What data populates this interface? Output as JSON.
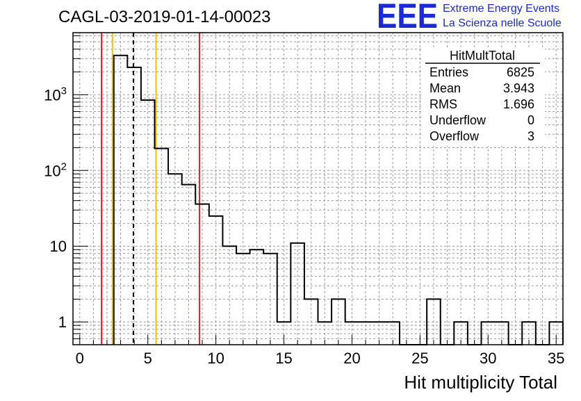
{
  "chart_data": {
    "type": "histogram",
    "title": "CAGL-03-2019-01-14-00023",
    "xlabel": "Hit multiplicity Total",
    "ylabel": "",
    "xlim": [
      -0.5,
      35.5
    ],
    "ylim": [
      0.5,
      6600
    ],
    "yscale": "log",
    "grid": true,
    "bin_width": 1,
    "bins": [
      {
        "x": 3,
        "y": 3300
      },
      {
        "x": 4,
        "y": 2300
      },
      {
        "x": 5,
        "y": 850
      },
      {
        "x": 6,
        "y": 195
      },
      {
        "x": 7,
        "y": 90
      },
      {
        "x": 8,
        "y": 65
      },
      {
        "x": 9,
        "y": 36
      },
      {
        "x": 10,
        "y": 25
      },
      {
        "x": 11,
        "y": 10
      },
      {
        "x": 12,
        "y": 8
      },
      {
        "x": 13,
        "y": 9
      },
      {
        "x": 14,
        "y": 8
      },
      {
        "x": 15,
        "y": 1
      },
      {
        "x": 16,
        "y": 11
      },
      {
        "x": 17,
        "y": 2
      },
      {
        "x": 18,
        "y": 1
      },
      {
        "x": 19,
        "y": 2
      },
      {
        "x": 20,
        "y": 1
      },
      {
        "x": 21,
        "y": 1
      },
      {
        "x": 22,
        "y": 1
      },
      {
        "x": 23,
        "y": 1
      },
      {
        "x": 24,
        "y": 0
      },
      {
        "x": 25,
        "y": 0
      },
      {
        "x": 26,
        "y": 2
      },
      {
        "x": 27,
        "y": 0
      },
      {
        "x": 28,
        "y": 1
      },
      {
        "x": 29,
        "y": 0
      },
      {
        "x": 30,
        "y": 1
      },
      {
        "x": 31,
        "y": 1
      },
      {
        "x": 32,
        "y": 0
      },
      {
        "x": 33,
        "y": 1
      },
      {
        "x": 34,
        "y": 0
      },
      {
        "x": 35,
        "y": 1
      }
    ],
    "x_ticks": [
      "0",
      "5",
      "10",
      "15",
      "20",
      "25",
      "30",
      "35"
    ],
    "y_ticks": [
      {
        "value": 1,
        "label": "1"
      },
      {
        "value": 10,
        "label": "10"
      },
      {
        "value": 100,
        "label": "10",
        "exponent": "2"
      },
      {
        "value": 1000,
        "label": "10",
        "exponent": "3"
      }
    ],
    "reference_lines": [
      {
        "x": 1.6,
        "color": "#e31a1c",
        "style": "solid"
      },
      {
        "x": 2.4,
        "color": "#f2c200",
        "style": "solid"
      },
      {
        "x": 3.94,
        "color": "#000000",
        "style": "dashed"
      },
      {
        "x": 5.6,
        "color": "#f2c200",
        "style": "solid"
      },
      {
        "x": 8.8,
        "color": "#e31a1c",
        "style": "solid"
      }
    ]
  },
  "stats_box": {
    "name": "HitMultTotal",
    "rows": [
      {
        "label": "Entries",
        "value": "6825"
      },
      {
        "label": "Mean",
        "value": "3.943"
      },
      {
        "label": "RMS",
        "value": "1.696"
      },
      {
        "label": "Underflow",
        "value": "0"
      },
      {
        "label": "Overflow",
        "value": "3"
      }
    ]
  },
  "logo": {
    "mark": "EEE",
    "line1": "Extreme Energy Events",
    "line2": "La Scienza nelle Scuole",
    "color": "#1a2bd6"
  }
}
